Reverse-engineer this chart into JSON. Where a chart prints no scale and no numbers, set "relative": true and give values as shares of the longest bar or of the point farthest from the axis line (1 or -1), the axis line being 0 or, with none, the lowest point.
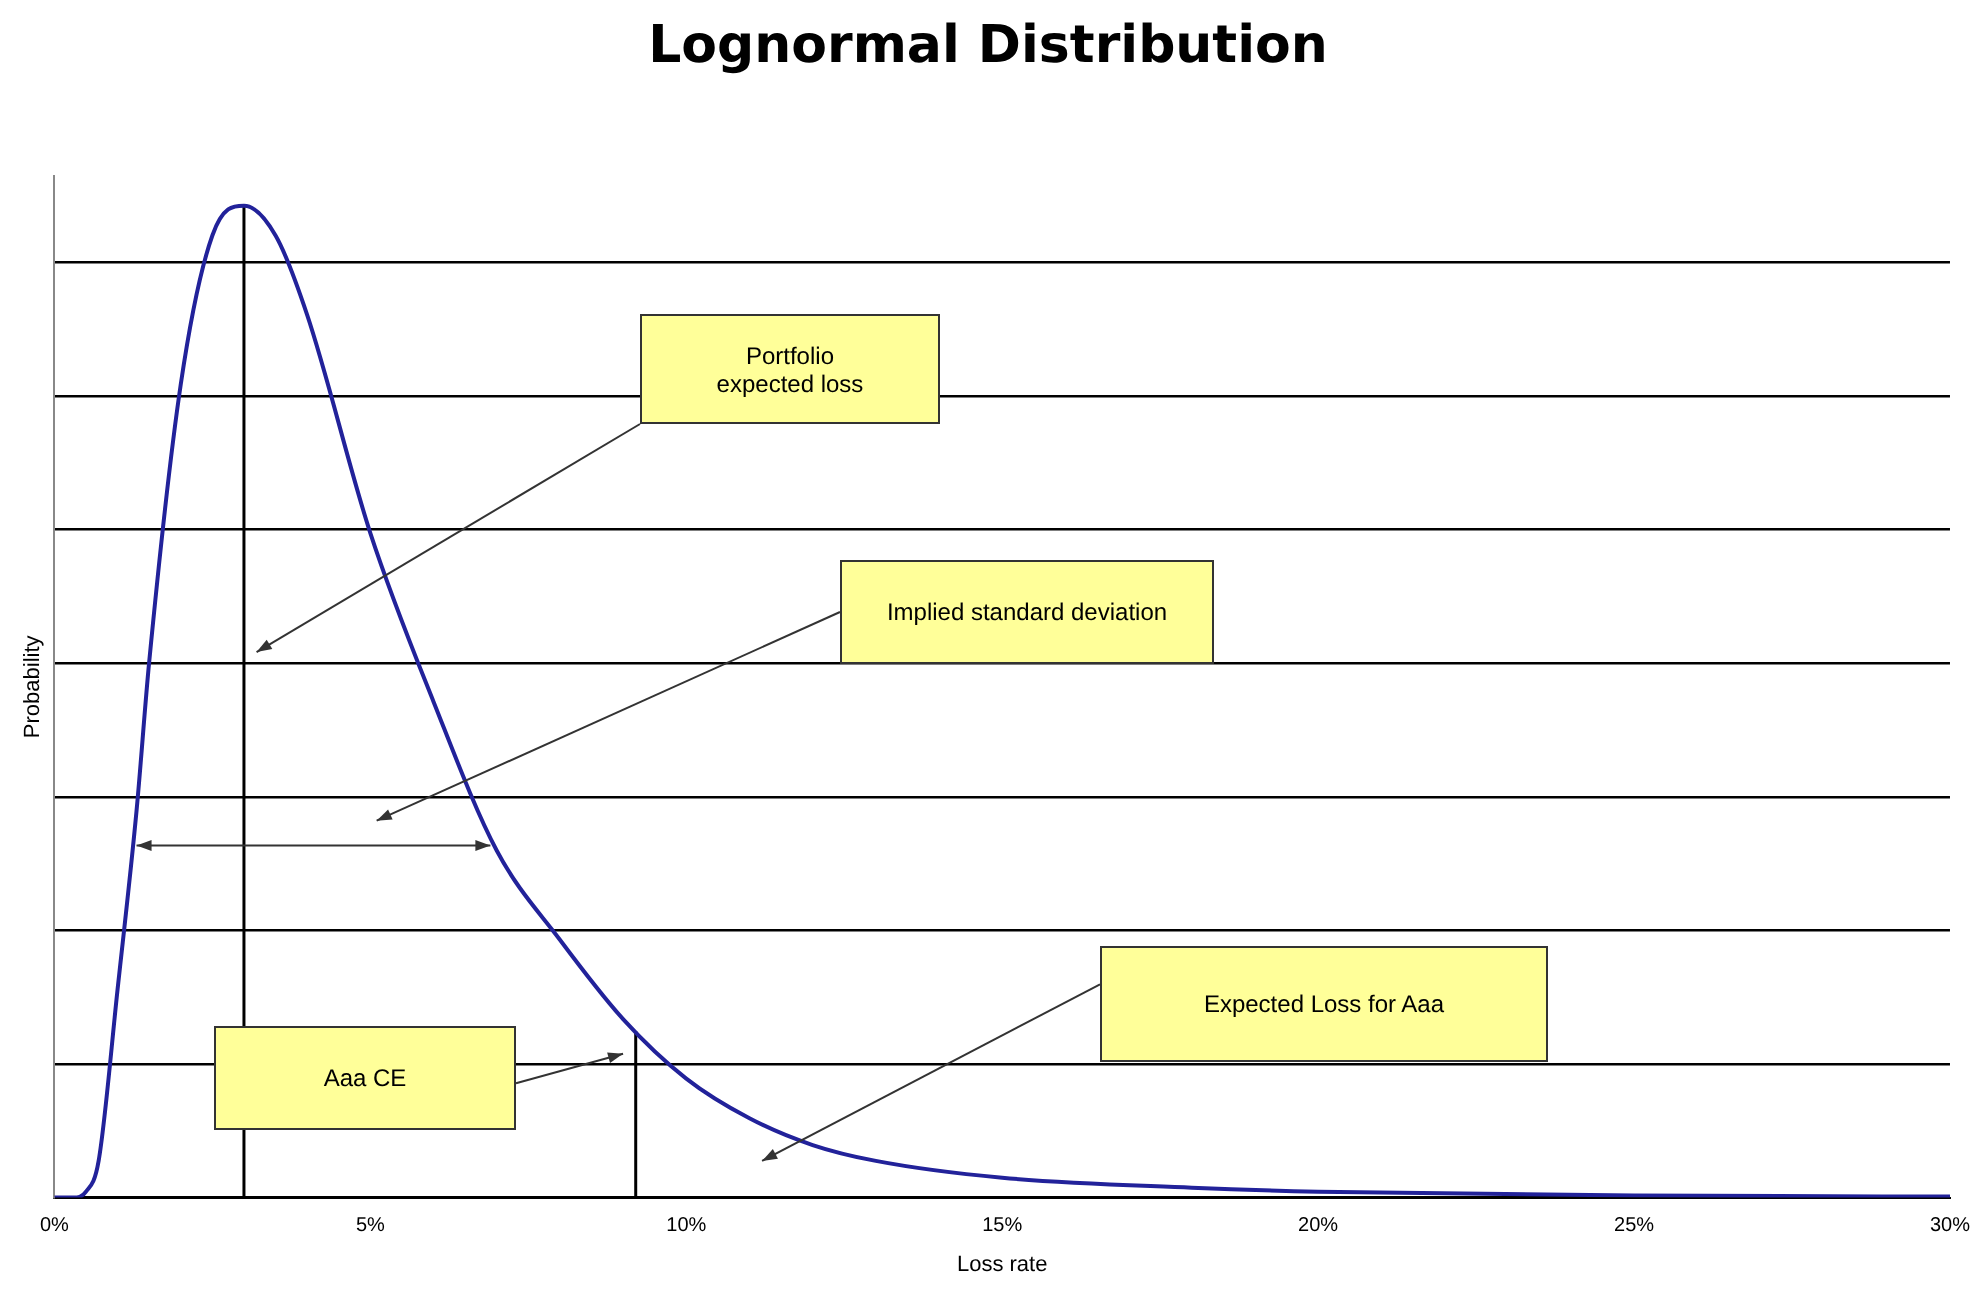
{
  "chart_data": {
    "type": "line",
    "title": "Lognormal Distribution",
    "xlabel": "Loss rate",
    "ylabel": "Probability",
    "relative": true,
    "grid": "y",
    "legend": false,
    "tick_labels": "x",
    "marker": "none",
    "line_style": "solid",
    "xlim": [
      0,
      30
    ],
    "xticks": [
      {
        "value": 0,
        "label": "0%"
      },
      {
        "value": 5,
        "label": "5%"
      },
      {
        "value": 10,
        "label": "10%"
      },
      {
        "value": 15,
        "label": "15%"
      },
      {
        "value": 20,
        "label": "20%"
      },
      {
        "value": 25,
        "label": "25%"
      },
      {
        "value": 30,
        "label": "30%"
      }
    ],
    "series": [
      {
        "color": "#22229a",
        "x": [
          0,
          0.3,
          0.5,
          0.7,
          1,
          1.3,
          1.5,
          2,
          2.5,
          3,
          3.5,
          4,
          5,
          6,
          7,
          8,
          9,
          10,
          11,
          12,
          13,
          15,
          18,
          20,
          25,
          30
        ],
        "values": [
          0,
          0,
          0.006,
          0.037,
          0.21,
          0.39,
          0.54,
          0.82,
          0.97,
          1,
          0.97,
          0.89,
          0.67,
          0.5,
          0.35,
          0.26,
          0.18,
          0.12,
          0.08,
          0.053,
          0.037,
          0.02,
          0.01,
          0.006,
          0.002,
          0.001
        ]
      }
    ],
    "ref_lines": [
      {
        "axis": "x",
        "value": 3
      },
      {
        "axis": "x",
        "value": 9.2
      }
    ],
    "annotations": [
      "Portfolio\nexpected loss",
      "Implied standard deviation",
      "Aaa CE",
      "Expected Loss for Aaa"
    ]
  }
}
